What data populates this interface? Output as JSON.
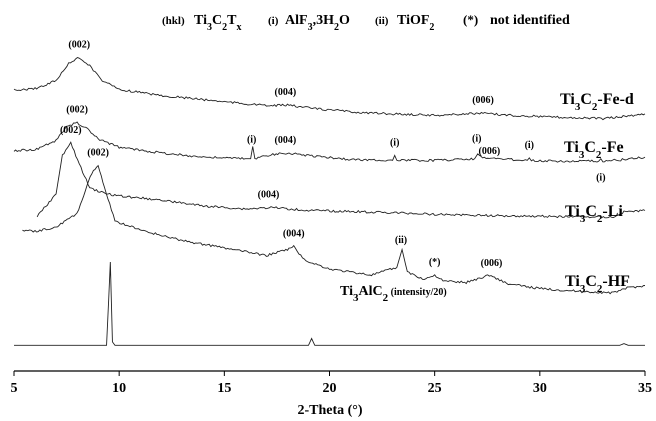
{
  "chart_data": {
    "type": "line",
    "xlabel": "2-Theta (°)",
    "xlim": [
      5,
      35
    ],
    "xticks": [
      5,
      10,
      15,
      20,
      25,
      30,
      35
    ],
    "legend": [
      {
        "key": "(hkl)",
        "text": "Ti3C2Tx"
      },
      {
        "key": "(i)",
        "text": "AlF3,3H2O"
      },
      {
        "key": "(ii)",
        "text": "TiOF2"
      },
      {
        "key": "(*)",
        "text": "not identified"
      }
    ],
    "series": [
      {
        "name": "Ti3C2-Fe-d",
        "label_main": "Ti",
        "label_sub1": "3",
        "label_mid": "C",
        "label_sub2": "2",
        "label_tail": "-Fe-d",
        "x_start": 5,
        "points": [
          [
            5,
            0.44
          ],
          [
            6,
            0.46
          ],
          [
            7,
            0.58
          ],
          [
            7.6,
            0.83
          ],
          [
            8.1,
            0.92
          ],
          [
            8.6,
            0.8
          ],
          [
            9.2,
            0.58
          ],
          [
            10,
            0.45
          ],
          [
            12,
            0.36
          ],
          [
            15,
            0.27
          ],
          [
            17,
            0.21
          ],
          [
            18,
            0.22
          ],
          [
            19.5,
            0.16
          ],
          [
            22,
            0.1
          ],
          [
            25,
            0.07
          ],
          [
            27.3,
            0.1
          ],
          [
            28.5,
            0.07
          ],
          [
            31,
            0.04
          ],
          [
            33,
            0.02
          ],
          [
            34.2,
            0.06
          ],
          [
            35,
            0.09
          ]
        ],
        "annotations": [
          {
            "x": 8.1,
            "text": "(002)"
          },
          {
            "x": 17.9,
            "text": "(004)"
          },
          {
            "x": 27.3,
            "text": "(006)"
          }
        ]
      },
      {
        "name": "Ti3C2-Fe",
        "label_main": "Ti",
        "label_sub1": "3",
        "label_mid": "C",
        "label_sub2": "2",
        "label_tail": "-Fe",
        "x_start": 5,
        "points": [
          [
            5,
            0.14
          ],
          [
            6,
            0.15
          ],
          [
            7,
            0.26
          ],
          [
            7.5,
            0.43
          ],
          [
            8,
            0.48
          ],
          [
            8.5,
            0.4
          ],
          [
            9,
            0.28
          ],
          [
            10,
            0.18
          ],
          [
            12,
            0.11
          ],
          [
            14,
            0.06
          ],
          [
            16,
            0.04
          ],
          [
            16.25,
            0.04
          ],
          [
            16.35,
            0.19
          ],
          [
            16.45,
            0.04
          ],
          [
            17,
            0.08
          ],
          [
            18,
            0.11
          ],
          [
            19,
            0.08
          ],
          [
            21,
            0.03
          ],
          [
            23,
            0.02
          ],
          [
            23.1,
            0.08
          ],
          [
            23.2,
            0.02
          ],
          [
            25,
            0.02
          ],
          [
            26.9,
            0.04
          ],
          [
            27.05,
            0.1
          ],
          [
            27.2,
            0.06
          ],
          [
            28,
            0.04
          ],
          [
            29.4,
            0.02
          ],
          [
            29.5,
            0.05
          ],
          [
            29.6,
            0.02
          ],
          [
            31,
            0.01
          ],
          [
            32.8,
            0.01
          ],
          [
            32.9,
            0.04
          ],
          [
            33,
            0.01
          ],
          [
            34,
            0.03
          ],
          [
            35,
            0.06
          ]
        ],
        "annotations": [
          {
            "x": 8.0,
            "text": "(002)"
          },
          {
            "x": 16.3,
            "text": "(i)"
          },
          {
            "x": 17.9,
            "text": "(004)"
          },
          {
            "x": 23.1,
            "text": "(i)"
          },
          {
            "x": 27.0,
            "text": "(i)"
          },
          {
            "x": 27.6,
            "text": "(006)"
          },
          {
            "x": 29.5,
            "text": "(i)"
          },
          {
            "x": 32.9,
            "text": "(i)"
          }
        ]
      },
      {
        "name": "Ti3C2-Li",
        "label_main": "Ti",
        "label_sub1": "3",
        "label_mid": "C",
        "label_sub2": "2",
        "label_tail": "-Li",
        "x_start": 6.1,
        "points": [
          [
            6.1,
            0.01
          ],
          [
            7,
            0.16
          ],
          [
            7.3,
            0.42
          ],
          [
            7.7,
            0.5
          ],
          [
            8.1,
            0.36
          ],
          [
            8.6,
            0.2
          ],
          [
            9.4,
            0.16
          ],
          [
            10.5,
            0.14
          ],
          [
            12,
            0.12
          ],
          [
            14,
            0.08
          ],
          [
            16,
            0.06
          ],
          [
            17.3,
            0.07
          ],
          [
            19,
            0.05
          ],
          [
            22,
            0.04
          ],
          [
            25,
            0.025
          ],
          [
            28,
            0.015
          ],
          [
            31,
            0.01
          ],
          [
            33.5,
            0.005
          ],
          [
            34,
            0.04
          ],
          [
            35,
            0.05
          ]
        ],
        "annotations": [
          {
            "x": 7.7,
            "text": "(002)"
          },
          {
            "x": 17.1,
            "text": "(004)"
          }
        ]
      },
      {
        "name": "Ti3C2-HF",
        "label_main": "Ti",
        "label_sub1": "3",
        "label_mid": "C",
        "label_sub2": "2",
        "label_tail": "-HF",
        "x_start": 5.4,
        "points": [
          [
            5.4,
            0.5
          ],
          [
            6,
            0.49
          ],
          [
            7,
            0.52
          ],
          [
            8,
            0.61
          ],
          [
            8.7,
            0.88
          ],
          [
            9.0,
            0.93
          ],
          [
            9.3,
            0.78
          ],
          [
            9.8,
            0.56
          ],
          [
            11,
            0.5
          ],
          [
            13,
            0.43
          ],
          [
            15,
            0.38
          ],
          [
            17,
            0.33
          ],
          [
            18,
            0.37
          ],
          [
            18.3,
            0.39
          ],
          [
            18.8,
            0.3
          ],
          [
            20,
            0.24
          ],
          [
            22,
            0.2
          ],
          [
            23.2,
            0.25
          ],
          [
            23.45,
            0.37
          ],
          [
            23.7,
            0.22
          ],
          [
            24.5,
            0.17
          ],
          [
            25,
            0.2
          ],
          [
            25.4,
            0.16
          ],
          [
            26.5,
            0.15
          ],
          [
            27.6,
            0.2
          ],
          [
            28.5,
            0.14
          ],
          [
            30,
            0.11
          ],
          [
            32,
            0.09
          ],
          [
            33.5,
            0.08
          ],
          [
            34,
            0.11
          ],
          [
            35,
            0.13
          ]
        ],
        "annotations": [
          {
            "x": 9.0,
            "text": "(002)"
          },
          {
            "x": 18.3,
            "text": "(004)"
          },
          {
            "x": 23.4,
            "text": "(ii)"
          },
          {
            "x": 25.0,
            "text": "(*)"
          },
          {
            "x": 27.7,
            "text": "(006)"
          }
        ]
      },
      {
        "name": "Ti3AlC2 (intensity/20)",
        "label_main": "Ti",
        "label_sub1": "3",
        "label_mid": "AlC",
        "label_sub2": "2",
        "label_tail": " (intensity/20)",
        "x_start": 5,
        "points": [
          [
            5,
            0.02
          ],
          [
            9.4,
            0.02
          ],
          [
            9.5,
            0.55
          ],
          [
            9.58,
            1.0
          ],
          [
            9.68,
            0.06
          ],
          [
            9.8,
            0.02
          ],
          [
            19.0,
            0.02
          ],
          [
            19.15,
            0.1
          ],
          [
            19.3,
            0.02
          ],
          [
            33.8,
            0.02
          ],
          [
            34.0,
            0.04
          ],
          [
            34.2,
            0.02
          ],
          [
            35,
            0.02
          ]
        ],
        "annotations": []
      }
    ]
  }
}
